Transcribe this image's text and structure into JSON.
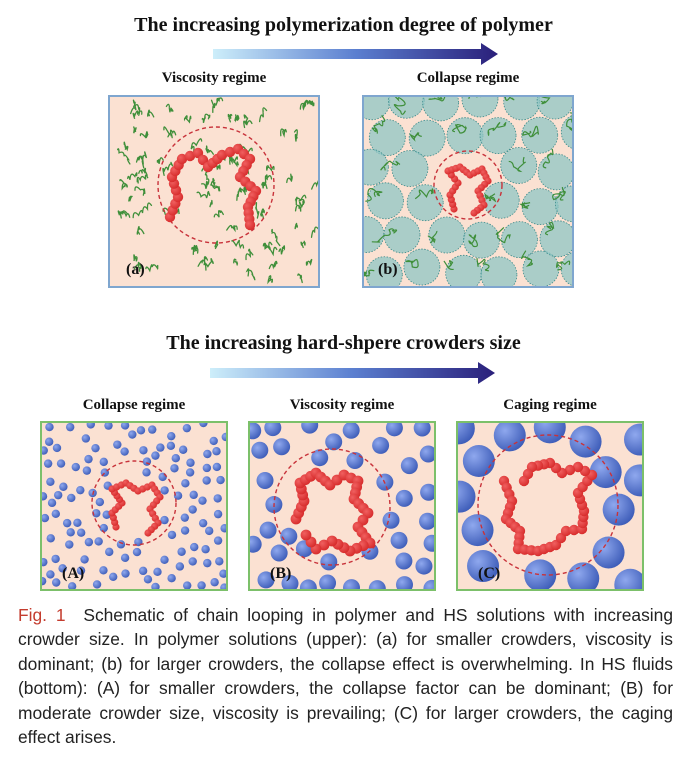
{
  "figure": {
    "top_title": "The increasing polymerization degree of polymer",
    "bottom_title": "The increasing hard-shpere crowders size",
    "panels": {
      "a": {
        "label": "Viscosity regime",
        "tag": "(a)"
      },
      "b": {
        "label": "Collapse regime",
        "tag": "(b)"
      },
      "A": {
        "label": "Collapse regime",
        "tag": "(A)"
      },
      "B": {
        "label": "Viscosity regime",
        "tag": "(B)"
      },
      "C": {
        "label": "Caging regime",
        "tag": "(C)"
      }
    },
    "caption_number": "Fig. 1",
    "caption_text": "Schematic of chain looping in polymer and HS solutions with increasing crowder size. In polymer solutions (upper): (a) for smaller crowders, viscosity is dominant; (b) for larger crowders, the collapse effect is overwhelming. In HS fluids (bottom): (A) for smaller crowders, the collapse factor can be dominant; (B) for moderate crowder size, viscosity is prevailing; (C) for larger crowders, the caging effect arises."
  },
  "colors": {
    "background_pink": "#fbe1d2",
    "polymer_bead_red": "#d62a2a",
    "crowder_blue": "#3d5cb8",
    "coil_green": "#3f8f3a",
    "panel_border_blue": "#7fa6cf",
    "panel_border_green": "#7cc06a",
    "arrow_start": "#bfe6f5",
    "arrow_end": "#2a1f7a",
    "caption_figno": "#c43c2e"
  }
}
